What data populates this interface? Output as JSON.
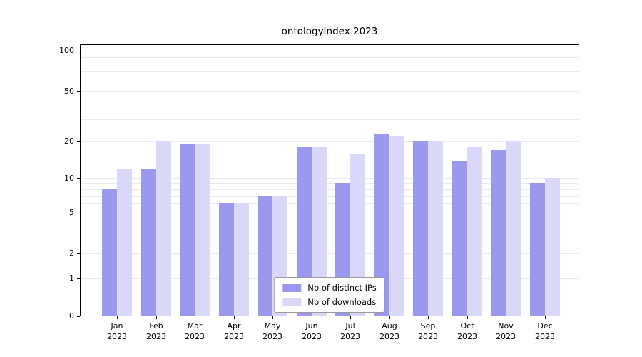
{
  "title": "ontologyIndex 2023",
  "chart_data": {
    "type": "bar",
    "categories": [
      "Jan",
      "Feb",
      "Mar",
      "Apr",
      "May",
      "Jun",
      "Jul",
      "Aug",
      "Sep",
      "Oct",
      "Nov",
      "Dec"
    ],
    "category_year": "2023",
    "series": [
      {
        "name": "Nb of distinct IPs",
        "color": "#9b99ee",
        "values": [
          8,
          12,
          19,
          6,
          7,
          18,
          9,
          23,
          20,
          14,
          17,
          9
        ]
      },
      {
        "name": "Nb of downloads",
        "color": "#d9d8f8",
        "values": [
          12,
          20,
          19,
          6,
          7,
          18,
          16,
          22,
          20,
          18,
          20,
          10
        ]
      }
    ],
    "yticks": [
      0,
      1,
      2,
      5,
      10,
      20,
      50,
      100
    ],
    "gridline_values": [
      1,
      2,
      3,
      4,
      5,
      6,
      7,
      8,
      9,
      10,
      20,
      30,
      40,
      50,
      60,
      70,
      80,
      90,
      100
    ],
    "yscale": "symlog",
    "ylim": [
      0,
      100
    ],
    "grid": true,
    "legend_position": "lower center",
    "colors": {
      "axis": "#000000",
      "grid": "#eaeaea",
      "background": "#ffffff"
    }
  }
}
